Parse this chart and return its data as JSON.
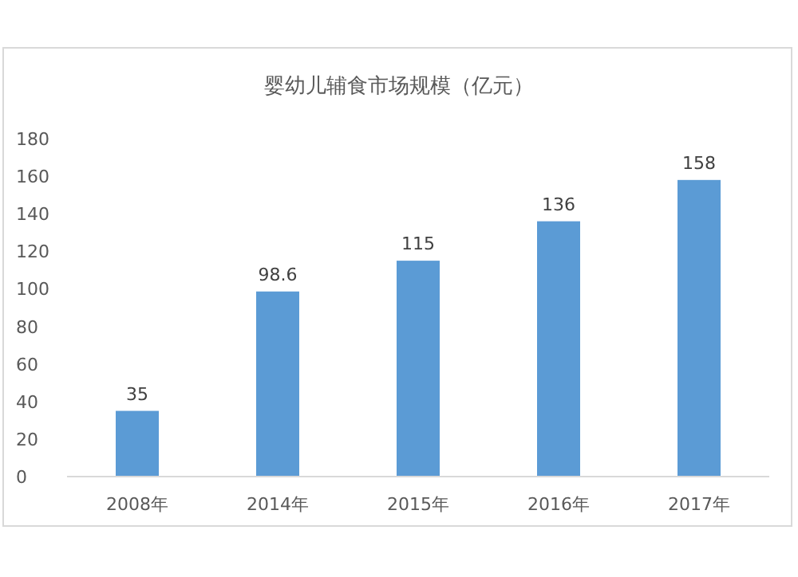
{
  "chart_data": {
    "type": "bar",
    "title": "婴幼儿辅食市场规模（亿元）",
    "categories": [
      "2008年",
      "2014年",
      "2015年",
      "2016年",
      "2017年"
    ],
    "values": [
      35,
      98.6,
      115,
      136,
      158
    ],
    "color": "#5b9bd5",
    "ylim": [
      0,
      180
    ],
    "yticks": [
      0,
      20,
      40,
      60,
      80,
      100,
      120,
      140,
      160,
      180
    ],
    "grid": false,
    "data_labels": true
  }
}
